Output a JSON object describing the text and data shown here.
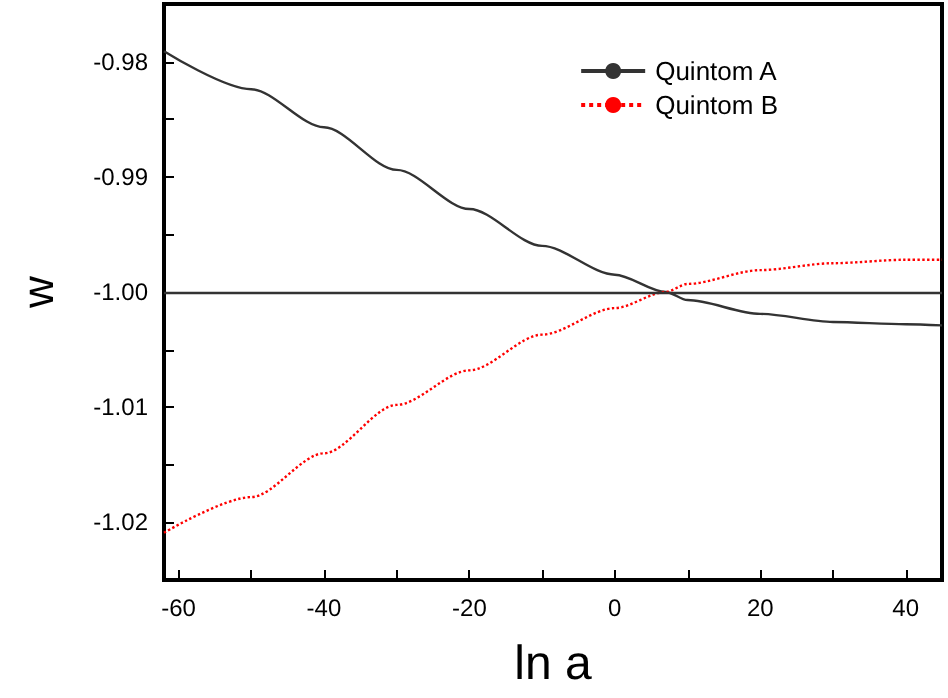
{
  "chart_data": {
    "type": "line",
    "xlabel": "ln a",
    "ylabel": "w",
    "x": [
      -62,
      -50,
      -40,
      -30,
      -20,
      -10,
      0,
      7,
      10,
      20,
      30,
      40,
      45
    ],
    "series": [
      {
        "name": "Quintom A",
        "color": "#333333",
        "line_style": "solid",
        "values": [
          -0.9791,
          -0.9824,
          -0.9857,
          -0.9894,
          -0.9928,
          -0.996,
          -0.9985,
          -1.0,
          -1.0007,
          -1.0019,
          -1.0026,
          -1.0028,
          -1.0029
        ]
      },
      {
        "name": "Quintom B",
        "color": "#ff0000",
        "line_style": "dotted",
        "values": [
          -1.0209,
          -1.0178,
          -1.014,
          -1.0098,
          -1.0068,
          -1.0037,
          -1.0014,
          -1.0,
          -0.9993,
          -0.9981,
          -0.9975,
          -0.9972,
          -0.9972
        ]
      }
    ],
    "xlim": [
      -62,
      45
    ],
    "ylim": [
      -1.025,
      -0.975
    ],
    "xticks": [
      -60,
      {
        "value": -50,
        "label": null
      },
      -40,
      {
        "value": -30,
        "label": null
      },
      -20,
      {
        "value": -10,
        "label": null
      },
      0,
      {
        "value": 10,
        "label": null
      },
      20,
      {
        "value": 30,
        "label": null
      },
      40
    ],
    "yticks": [
      {
        "value": -1.02,
        "label": "-1.02"
      },
      {
        "value": -1.015,
        "label": null
      },
      {
        "value": -1.01,
        "label": "-1.01"
      },
      {
        "value": -1.005,
        "label": null
      },
      {
        "value": -1,
        "label": "-1.00"
      },
      {
        "value": -0.995,
        "label": null
      },
      {
        "value": -0.99,
        "label": "-0.99"
      },
      {
        "value": -0.985,
        "label": null
      },
      {
        "value": -0.98,
        "label": "-0.98"
      }
    ],
    "ref_lines": [
      {
        "axis": "y",
        "value": -1,
        "color": "#333333",
        "line_style": "solid"
      }
    ],
    "legend": "top right",
    "marker": "none",
    "grid": false
  }
}
